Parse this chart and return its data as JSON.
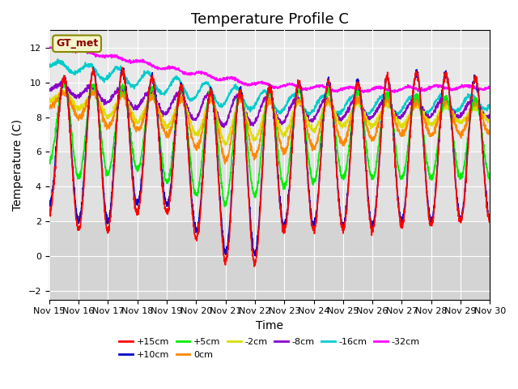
{
  "title": "Temperature Profile C",
  "xlabel": "Time",
  "ylabel": "Temperature (C)",
  "ylim": [
    -2.5,
    13
  ],
  "xlim": [
    0,
    15
  ],
  "yticks": [
    -2,
    0,
    2,
    4,
    6,
    8,
    10,
    12
  ],
  "xtick_labels": [
    "Nov 15",
    "Nov 16",
    "Nov 17",
    "Nov 18",
    "Nov 19",
    "Nov 20",
    "Nov 21",
    "Nov 22",
    "Nov 23",
    "Nov 24",
    "Nov 25",
    "Nov 26",
    "Nov 27",
    "Nov 28",
    "Nov 29",
    "Nov 30"
  ],
  "legend_label": "GT_met",
  "series_colors": {
    "+15cm": "#ff0000",
    "+10cm": "#0000cc",
    "+5cm": "#00ee00",
    "0cm": "#ff8800",
    "-2cm": "#dddd00",
    "-8cm": "#8800cc",
    "-16cm": "#00cccc",
    "-32cm": "#ff00ff"
  },
  "background_color": "#ffffff",
  "plot_bg_color": "#e8e8e8",
  "shaded_bg_color": "#d0d0d0",
  "grid_color": "#ffffff",
  "title_fontsize": 13,
  "axis_fontsize": 10,
  "tick_fontsize": 8,
  "legend_fontsize": 8
}
